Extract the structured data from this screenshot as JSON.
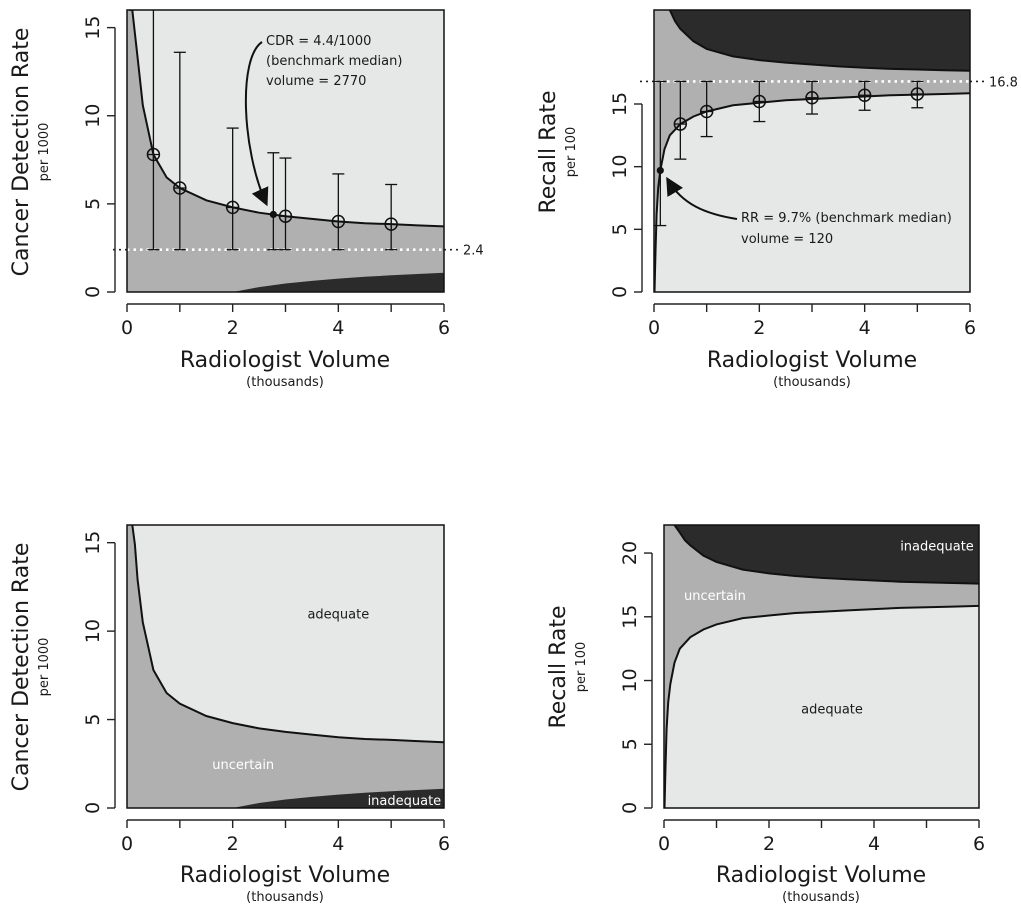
{
  "colors": {
    "adequate": "#e6e7e7",
    "uncertain": "#b0b0b0",
    "inadequate": "#2b2b2b",
    "reference_line": "#ffffff"
  },
  "chart_data": [
    {
      "type": "area",
      "panel": "top-left",
      "xlabel": "Radiologist Volume",
      "xlabel_sub": "(thousands)",
      "ylabel": "Cancer Detection Rate",
      "ylabel_sub": "per 1000",
      "xlim": [
        0,
        6
      ],
      "ylim": [
        0,
        16
      ],
      "x_ticks": [
        0,
        2,
        4,
        6
      ],
      "x_minor_ticks": [
        1,
        3,
        5
      ],
      "y_ticks": [
        0,
        5,
        10,
        15
      ],
      "reference_line": {
        "y": 2.4,
        "label": "2.4"
      },
      "upper_boundary": {
        "x": [
          0.05,
          0.1,
          0.2,
          0.3,
          0.5,
          0.75,
          1,
          1.5,
          2,
          2.5,
          3,
          3.5,
          4,
          4.5,
          5,
          5.5,
          6
        ],
        "y": [
          16,
          16,
          13.3,
          10.6,
          7.8,
          6.5,
          5.9,
          5.2,
          4.8,
          4.5,
          4.3,
          4.15,
          4.0,
          3.9,
          3.85,
          3.78,
          3.72
        ]
      },
      "lower_boundary": {
        "x": [
          2,
          2.5,
          3,
          3.5,
          4,
          4.5,
          5,
          5.5,
          6
        ],
        "y": [
          0,
          0.28,
          0.48,
          0.63,
          0.76,
          0.86,
          0.95,
          1.02,
          1.09
        ]
      },
      "error_bars": [
        {
          "x": 0.5,
          "y": 7.8,
          "lo": 2.4,
          "hi": 16
        },
        {
          "x": 1,
          "y": 5.9,
          "lo": 2.4,
          "hi": 13.6
        },
        {
          "x": 2,
          "y": 4.8,
          "lo": 2.4,
          "hi": 9.3
        },
        {
          "x": 3,
          "y": 4.3,
          "lo": 2.4,
          "hi": 7.6
        },
        {
          "x": 4,
          "y": 4.0,
          "lo": 2.4,
          "hi": 6.7
        },
        {
          "x": 5,
          "y": 3.85,
          "lo": 2.4,
          "hi": 6.1
        }
      ],
      "highlight": {
        "x": 2.77,
        "y": 4.4,
        "lo": 2.4,
        "hi": 7.9
      },
      "annotation_lines": [
        "CDR = 4.4/1000",
        "(benchmark median)",
        "volume = 2770"
      ],
      "region_labels": []
    },
    {
      "type": "area",
      "panel": "top-right",
      "xlabel": "Radiologist Volume",
      "xlabel_sub": "(thousands)",
      "ylabel": "Recall Rate",
      "ylabel_sub": "per 100",
      "xlim": [
        0,
        6
      ],
      "ylim": [
        0,
        22.5
      ],
      "x_ticks": [
        0,
        2,
        4,
        6
      ],
      "x_minor_ticks": [
        1,
        3,
        5
      ],
      "y_ticks": [
        0,
        5,
        10,
        15
      ],
      "reference_line": {
        "y": 16.8,
        "label": "16.8"
      },
      "lower_boundary": {
        "x": [
          0.01,
          0.03,
          0.05,
          0.08,
          0.12,
          0.2,
          0.3,
          0.5,
          0.75,
          1,
          1.5,
          2,
          2.5,
          3,
          3.5,
          4,
          4.5,
          5,
          5.5,
          6
        ],
        "y": [
          0,
          3.5,
          6.2,
          8.3,
          9.7,
          11.4,
          12.5,
          13.4,
          14.0,
          14.4,
          14.9,
          15.1,
          15.3,
          15.4,
          15.5,
          15.6,
          15.7,
          15.75,
          15.8,
          15.85
        ]
      },
      "upper_boundary": {
        "x": [
          0.3,
          0.4,
          0.5,
          0.75,
          1,
          1.5,
          2,
          2.5,
          3,
          3.5,
          4,
          4.5,
          5,
          5.5,
          6
        ],
        "y": [
          22.5,
          21.6,
          21.0,
          20.0,
          19.4,
          18.8,
          18.5,
          18.3,
          18.15,
          18.0,
          17.9,
          17.8,
          17.75,
          17.7,
          17.65
        ]
      },
      "error_bars": [
        {
          "x": 0.5,
          "y": 13.4,
          "lo": 10.6,
          "hi": 16.8
        },
        {
          "x": 1,
          "y": 14.4,
          "lo": 12.4,
          "hi": 16.8
        },
        {
          "x": 2,
          "y": 15.2,
          "lo": 13.6,
          "hi": 16.8
        },
        {
          "x": 3,
          "y": 15.5,
          "lo": 14.2,
          "hi": 16.8
        },
        {
          "x": 4,
          "y": 15.7,
          "lo": 14.5,
          "hi": 16.8
        },
        {
          "x": 5,
          "y": 15.8,
          "lo": 14.7,
          "hi": 16.8
        }
      ],
      "highlight": {
        "x": 0.12,
        "y": 9.7,
        "lo": 5.3,
        "hi": 16.8
      },
      "annotation_lines": [
        "RR = 9.7% (benchmark median)",
        "volume = 120"
      ],
      "region_labels": []
    },
    {
      "type": "area",
      "panel": "bottom-left",
      "xlabel": "Radiologist Volume",
      "xlabel_sub": "(thousands)",
      "ylabel": "Cancer Detection Rate",
      "ylabel_sub": "per 1000",
      "xlim": [
        0,
        6
      ],
      "ylim": [
        0,
        16
      ],
      "x_ticks": [
        0,
        2,
        4,
        6
      ],
      "x_minor_ticks": [
        1,
        3,
        5
      ],
      "y_ticks": [
        0,
        5,
        10,
        15
      ],
      "upper_boundary": {
        "x": [
          0.1,
          0.15,
          0.2,
          0.3,
          0.5,
          0.75,
          1,
          1.5,
          2,
          2.5,
          3,
          3.5,
          4,
          4.5,
          5,
          5.5,
          6
        ],
        "y": [
          16,
          14.9,
          12.9,
          10.5,
          7.8,
          6.5,
          5.9,
          5.2,
          4.8,
          4.5,
          4.3,
          4.15,
          4.0,
          3.9,
          3.85,
          3.78,
          3.72
        ]
      },
      "lower_boundary": {
        "x": [
          2,
          2.5,
          3,
          3.5,
          4,
          4.5,
          5,
          5.5,
          6
        ],
        "y": [
          0,
          0.28,
          0.48,
          0.63,
          0.76,
          0.86,
          0.95,
          1.02,
          1.09
        ]
      },
      "region_labels": [
        {
          "text": "adequate",
          "x": 4.0,
          "y": 11,
          "light": false
        },
        {
          "text": "uncertain",
          "x": 2.2,
          "y": 2.5,
          "light": true
        },
        {
          "text": "inadequate",
          "x": 5.25,
          "y": 0.45,
          "light": true
        }
      ]
    },
    {
      "type": "area",
      "panel": "bottom-right",
      "xlabel": "Radiologist Volume",
      "xlabel_sub": "(thousands)",
      "ylabel": "Recall Rate",
      "ylabel_sub": "per 100",
      "xlim": [
        0,
        6
      ],
      "ylim": [
        0,
        22.2
      ],
      "x_ticks": [
        0,
        2,
        4,
        6
      ],
      "x_minor_ticks": [
        1,
        3,
        5
      ],
      "y_ticks": [
        0,
        5,
        10,
        15,
        20
      ],
      "lower_boundary": {
        "x": [
          0.01,
          0.03,
          0.05,
          0.08,
          0.12,
          0.2,
          0.3,
          0.5,
          0.75,
          1,
          1.5,
          2,
          2.5,
          3,
          3.5,
          4,
          4.5,
          5,
          5.5,
          6
        ],
        "y": [
          0,
          3.5,
          6.2,
          8.3,
          9.7,
          11.4,
          12.5,
          13.4,
          14.0,
          14.4,
          14.9,
          15.1,
          15.3,
          15.4,
          15.5,
          15.6,
          15.7,
          15.75,
          15.8,
          15.85
        ]
      },
      "upper_boundary": {
        "x": [
          0.2,
          0.3,
          0.4,
          0.5,
          0.75,
          1,
          1.5,
          2,
          2.5,
          3,
          3.5,
          4,
          4.5,
          5,
          5.5,
          6
        ],
        "y": [
          22.2,
          21.6,
          21.0,
          20.6,
          19.8,
          19.3,
          18.7,
          18.4,
          18.2,
          18.05,
          17.95,
          17.85,
          17.75,
          17.7,
          17.65,
          17.6
        ]
      },
      "region_labels": [
        {
          "text": "inadequate",
          "x": 5.2,
          "y": 20.6,
          "light": true
        },
        {
          "text": "uncertain",
          "x": 0.97,
          "y": 16.7,
          "light": true
        },
        {
          "text": "adequate",
          "x": 3.2,
          "y": 7.8,
          "light": false
        }
      ]
    }
  ]
}
